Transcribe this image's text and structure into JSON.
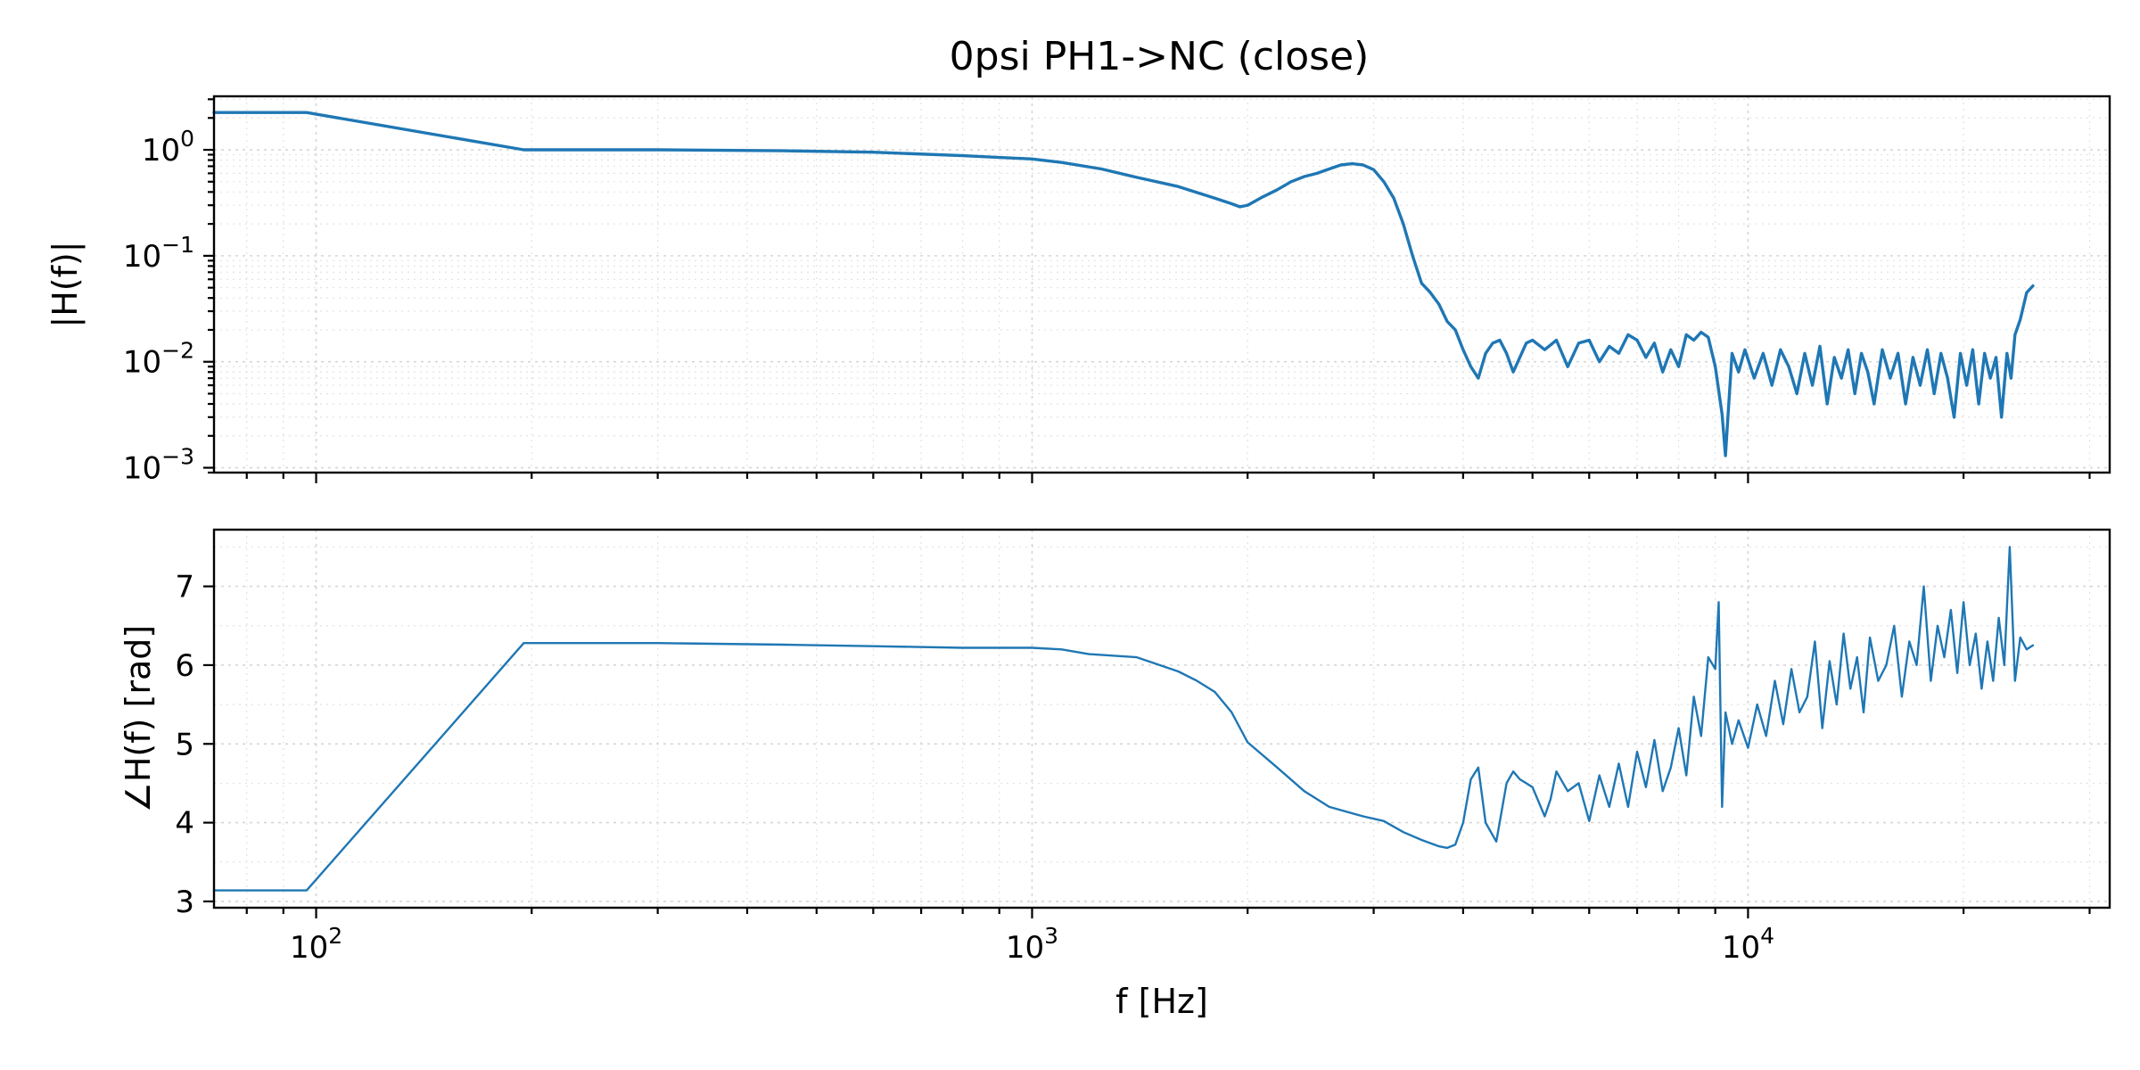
{
  "title": "0psi PH1->NC (close)",
  "colors": {
    "series": "#1f77b4",
    "frame": "#000000",
    "grid": "#d6d6d6"
  },
  "chart_data": [
    {
      "type": "line",
      "id": "magnitude",
      "xscale": "log",
      "yscale": "log",
      "xlim": [
        72,
        32000
      ],
      "ylim": [
        0.0009,
        3.2
      ],
      "xlabel": "",
      "ylabel": "|H(f)|",
      "grid": true,
      "grid_minor": true,
      "show_xticklabels": false,
      "xticks": [
        {
          "value": 100,
          "label": "10^2"
        },
        {
          "value": 1000,
          "label": "10^3"
        },
        {
          "value": 10000,
          "label": "10^4"
        }
      ],
      "yticks": [
        {
          "value": 0.001,
          "base": "10",
          "exp": "−3"
        },
        {
          "value": 0.01,
          "base": "10",
          "exp": "−2"
        },
        {
          "value": 0.1,
          "base": "10",
          "exp": "−1"
        },
        {
          "value": 1,
          "base": "10",
          "exp": "0"
        }
      ],
      "series": [
        {
          "x": [
            72,
            97,
            195,
            300,
            450,
            600,
            800,
            1000,
            1100,
            1250,
            1400,
            1600,
            1800,
            1900,
            1950,
            2000,
            2100,
            2200,
            2300,
            2400,
            2500,
            2600,
            2700,
            2800,
            2900,
            3000,
            3100,
            3200,
            3300,
            3400,
            3500,
            3600,
            3700,
            3800,
            3900,
            4000,
            4100,
            4200,
            4300,
            4400,
            4500,
            4600,
            4700,
            4800,
            4900,
            5000,
            5200,
            5400,
            5600,
            5800,
            6000,
            6200,
            6400,
            6600,
            6800,
            7000,
            7200,
            7400,
            7600,
            7800,
            8000,
            8200,
            8400,
            8600,
            8800,
            9000,
            9200,
            9300,
            9400,
            9500,
            9700,
            9900,
            10200,
            10500,
            10800,
            11100,
            11400,
            11700,
            12000,
            12300,
            12600,
            12900,
            13200,
            13500,
            13800,
            14100,
            14400,
            14700,
            15000,
            15400,
            15800,
            16200,
            16600,
            17000,
            17400,
            17800,
            18200,
            18600,
            19000,
            19400,
            19800,
            20200,
            20600,
            21000,
            21400,
            21800,
            22200,
            22600,
            23000,
            23300,
            23600,
            24000,
            24500,
            25000
          ],
          "y": [
            2.25,
            2.25,
            1.0,
            1.0,
            0.98,
            0.95,
            0.88,
            0.82,
            0.76,
            0.66,
            0.55,
            0.45,
            0.35,
            0.31,
            0.29,
            0.3,
            0.36,
            0.42,
            0.5,
            0.56,
            0.6,
            0.66,
            0.72,
            0.74,
            0.72,
            0.65,
            0.5,
            0.35,
            0.2,
            0.1,
            0.055,
            0.045,
            0.035,
            0.024,
            0.02,
            0.013,
            0.009,
            0.007,
            0.012,
            0.015,
            0.016,
            0.012,
            0.008,
            0.011,
            0.015,
            0.016,
            0.013,
            0.016,
            0.009,
            0.015,
            0.016,
            0.01,
            0.014,
            0.012,
            0.018,
            0.016,
            0.011,
            0.015,
            0.008,
            0.013,
            0.009,
            0.018,
            0.016,
            0.019,
            0.017,
            0.009,
            0.0032,
            0.0013,
            0.004,
            0.012,
            0.008,
            0.013,
            0.007,
            0.012,
            0.006,
            0.013,
            0.009,
            0.005,
            0.012,
            0.006,
            0.014,
            0.004,
            0.011,
            0.007,
            0.013,
            0.005,
            0.012,
            0.008,
            0.004,
            0.013,
            0.007,
            0.012,
            0.004,
            0.011,
            0.006,
            0.013,
            0.005,
            0.012,
            0.007,
            0.003,
            0.012,
            0.006,
            0.013,
            0.004,
            0.012,
            0.007,
            0.011,
            0.003,
            0.012,
            0.007,
            0.018,
            0.025,
            0.045,
            0.052
          ]
        }
      ]
    },
    {
      "type": "line",
      "id": "phase",
      "xscale": "log",
      "yscale": "linear",
      "xlim": [
        72,
        32000
      ],
      "ylim": [
        2.92,
        7.72
      ],
      "xlabel": "f [Hz]",
      "ylabel": "∠H(f) [rad]",
      "grid": true,
      "grid_minor": true,
      "show_xticklabels": true,
      "xticks": [
        {
          "value": 100,
          "base": "10",
          "exp": "2"
        },
        {
          "value": 1000,
          "base": "10",
          "exp": "3"
        },
        {
          "value": 10000,
          "base": "10",
          "exp": "4"
        }
      ],
      "yticks": [
        {
          "value": 3,
          "label": "3"
        },
        {
          "value": 4,
          "label": "4"
        },
        {
          "value": 5,
          "label": "5"
        },
        {
          "value": 6,
          "label": "6"
        },
        {
          "value": 7,
          "label": "7"
        }
      ],
      "series": [
        {
          "x": [
            72,
            97,
            195,
            300,
            450,
            600,
            800,
            1000,
            1100,
            1200,
            1400,
            1600,
            1700,
            1800,
            1900,
            2000,
            2200,
            2400,
            2600,
            2900,
            3100,
            3300,
            3500,
            3700,
            3800,
            3900,
            4000,
            4100,
            4200,
            4300,
            4450,
            4600,
            4700,
            4800,
            4900,
            5000,
            5200,
            5300,
            5400,
            5600,
            5800,
            6000,
            6200,
            6400,
            6600,
            6800,
            7000,
            7200,
            7400,
            7600,
            7800,
            8000,
            8200,
            8400,
            8600,
            8800,
            9000,
            9100,
            9200,
            9300,
            9500,
            9700,
            10000,
            10300,
            10600,
            10900,
            11200,
            11500,
            11800,
            12100,
            12400,
            12700,
            13000,
            13300,
            13600,
            13900,
            14200,
            14500,
            14800,
            15200,
            15600,
            16000,
            16400,
            16800,
            17200,
            17600,
            18000,
            18400,
            18800,
            19200,
            19600,
            20000,
            20400,
            20800,
            21200,
            21600,
            22000,
            22400,
            22800,
            23200,
            23600,
            24000,
            24500,
            25000
          ],
          "y": [
            3.14,
            3.14,
            6.28,
            6.28,
            6.26,
            6.24,
            6.22,
            6.22,
            6.2,
            6.14,
            6.1,
            5.92,
            5.8,
            5.66,
            5.4,
            5.02,
            4.7,
            4.4,
            4.2,
            4.08,
            4.02,
            3.88,
            3.78,
            3.7,
            3.68,
            3.72,
            4.0,
            4.55,
            4.7,
            4.0,
            3.76,
            4.5,
            4.65,
            4.55,
            4.5,
            4.45,
            4.08,
            4.3,
            4.65,
            4.4,
            4.5,
            4.02,
            4.6,
            4.2,
            4.75,
            4.2,
            4.9,
            4.45,
            5.05,
            4.4,
            4.7,
            5.2,
            4.6,
            5.6,
            5.1,
            6.1,
            5.95,
            6.8,
            4.2,
            5.4,
            5.0,
            5.3,
            4.95,
            5.5,
            5.1,
            5.8,
            5.25,
            5.95,
            5.4,
            5.6,
            6.3,
            5.2,
            6.05,
            5.5,
            6.4,
            5.7,
            6.1,
            5.4,
            6.35,
            5.8,
            6.0,
            6.5,
            5.6,
            6.3,
            6.0,
            7.0,
            5.8,
            6.5,
            6.1,
            6.7,
            5.9,
            6.8,
            6.0,
            6.4,
            5.7,
            6.3,
            5.8,
            6.6,
            6.0,
            7.5,
            5.8,
            6.35,
            6.2,
            6.25
          ]
        }
      ]
    }
  ]
}
